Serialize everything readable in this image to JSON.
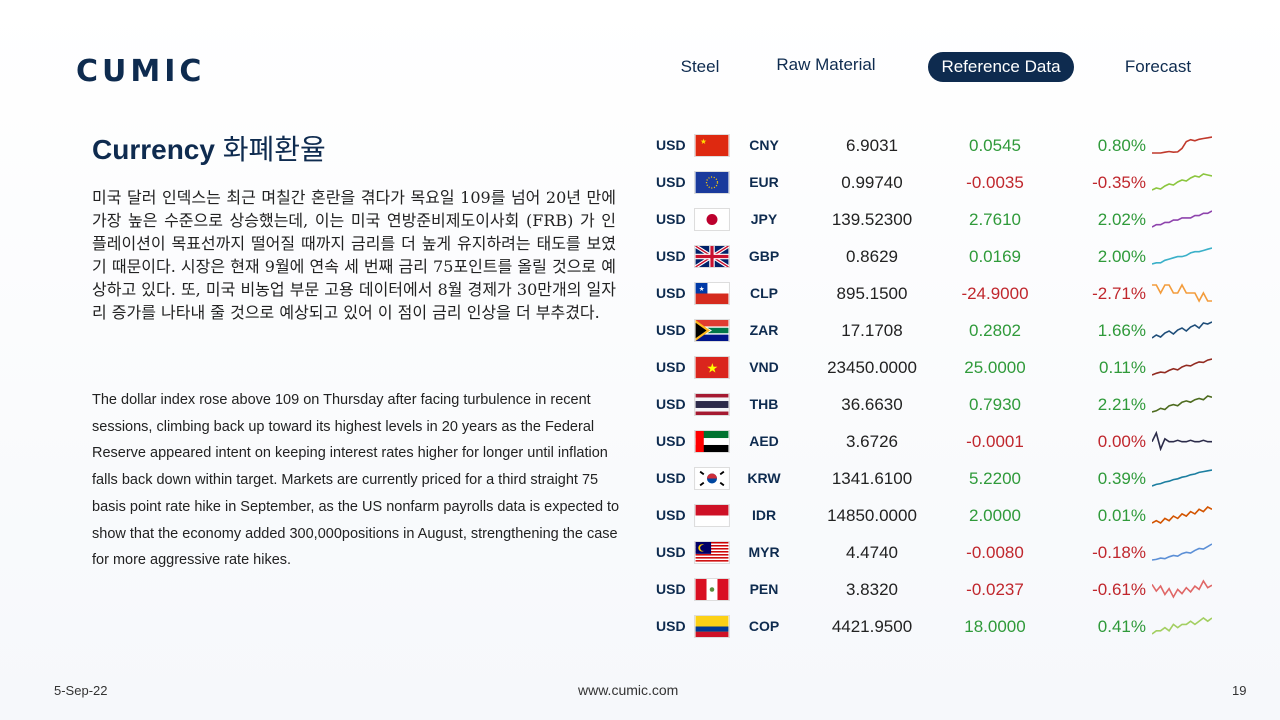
{
  "brand": "CUMIC",
  "nav": [
    {
      "label": "Steel"
    },
    {
      "label": "Raw Material"
    },
    {
      "label": "Reference Data",
      "active": true
    },
    {
      "label": "Forecast"
    }
  ],
  "title": {
    "en": "Currency",
    "ko": "화폐환율"
  },
  "korean_text": "미국 달러 인덱스는 최근 며칠간 혼란을 겪다가 목요일 109를 넘어 20년 만에 가장 높은 수준으로 상승했는데, 이는 미국 연방준비제도이사회 (FRB) 가 인플레이션이 목표선까지 떨어질 때까지 금리를 더 높게 유지하려는 태도를 보였기 때문이다. 시장은 현재 9월에 연속 세 번째 금리 75포인트를 올릴 것으로 예상하고 있다. 또, 미국 비농업 부문 고용 데이터에서 8월 경제가 30만개의 일자리 증가를 나타내 줄 것으로 예상되고 있어 이 점이 금리 인상을 더 부추겼다.",
  "english_text": "The dollar index rose above 109 on Thursday after facing turbulence in recent sessions, climbing back up toward its highest levels in 20 years as the Federal Reserve appeared intent on keeping interest rates higher for longer until inflation falls back down within target. Markets are currently priced for a third straight 75 basis point rate hike in September, as the US nonfarm payrolls data is expected to show that the economy added 300,000positions in August, strengthening the case for more aggressive rate hikes.",
  "currencies": [
    {
      "base": "USD",
      "quote": "CNY",
      "flag": "china-flag-icon",
      "rate": "6.9031",
      "change": "0.0545",
      "pct": "0.80%",
      "dir": "pos",
      "spark_color": "#c0392b",
      "spark": [
        2,
        2,
        2,
        2.2,
        2.4,
        2.2,
        2.3,
        3.2,
        5,
        5.5,
        5.2,
        5.6,
        5.8,
        6,
        6.2
      ]
    },
    {
      "base": "USD",
      "quote": "EUR",
      "flag": "eu-flag-icon",
      "rate": "0.99740",
      "change": "-0.0035",
      "pct": "-0.35%",
      "dir": "neg",
      "spark_color": "#8cc63f",
      "spark": [
        3,
        3.2,
        3.1,
        3.4,
        3.6,
        3.5,
        3.8,
        4,
        3.9,
        4.2,
        4.4,
        4.3,
        4.6,
        4.5,
        4.4
      ]
    },
    {
      "base": "USD",
      "quote": "JPY",
      "flag": "japan-flag-icon",
      "rate": "139.52300",
      "change": "2.7610",
      "pct": "2.02%",
      "dir": "pos",
      "spark_color": "#8e44ad",
      "spark": [
        4,
        4.1,
        4.1,
        4.2,
        4.2,
        4.3,
        4.3,
        4.4,
        4.4,
        4.4,
        4.5,
        4.5,
        4.6,
        4.6,
        4.7
      ]
    },
    {
      "base": "USD",
      "quote": "GBP",
      "flag": "uk-flag-icon",
      "rate": "0.8629",
      "change": "0.0169",
      "pct": "2.00%",
      "dir": "pos",
      "spark_color": "#3bb0c9",
      "spark": [
        3.5,
        3.6,
        3.6,
        3.8,
        3.9,
        4,
        4.1,
        4.1,
        4.2,
        4.4,
        4.5,
        4.5,
        4.6,
        4.7,
        4.8
      ]
    },
    {
      "base": "USD",
      "quote": "CLP",
      "flag": "chile-flag-icon",
      "rate": "895.1500",
      "change": "-24.9000",
      "pct": "-2.71%",
      "dir": "neg",
      "spark_color": "#f39c3c",
      "spark": [
        4.5,
        4.5,
        4.4,
        4.5,
        4.5,
        4.4,
        4.4,
        4.5,
        4.4,
        4.4,
        4.4,
        4.3,
        4.4,
        4.3,
        4.3
      ]
    },
    {
      "base": "USD",
      "quote": "ZAR",
      "flag": "south-africa-flag-icon",
      "rate": "17.1708",
      "change": "0.2802",
      "pct": "1.66%",
      "dir": "pos",
      "spark_color": "#1f4e79",
      "spark": [
        3.5,
        3.8,
        3.6,
        4,
        4.2,
        3.9,
        4.3,
        4.5,
        4.2,
        4.6,
        4.8,
        4.5,
        5,
        4.9,
        5.1
      ]
    },
    {
      "base": "USD",
      "quote": "VND",
      "flag": "vietnam-flag-icon",
      "rate": "23450.0000",
      "change": "25.0000",
      "pct": "0.11%",
      "dir": "pos",
      "spark_color": "#922b21",
      "spark": [
        2.5,
        2.8,
        3,
        2.9,
        3.3,
        3.6,
        3.4,
        3.9,
        4.2,
        4.1,
        4.5,
        4.8,
        4.7,
        5.1,
        5.3
      ]
    },
    {
      "base": "USD",
      "quote": "THB",
      "flag": "thailand-flag-icon",
      "rate": "36.6630",
      "change": "0.7930",
      "pct": "2.21%",
      "dir": "pos",
      "spark_color": "#4d6b1f",
      "spark": [
        3.5,
        3.6,
        3.8,
        3.7,
        4,
        4.1,
        4,
        4.3,
        4.4,
        4.3,
        4.5,
        4.6,
        4.5,
        4.8,
        4.7
      ]
    },
    {
      "base": "USD",
      "quote": "AED",
      "flag": "uae-flag-icon",
      "rate": "3.6726",
      "change": "-0.0001",
      "pct": "0.00%",
      "dir": "zero",
      "spark_color": "#2c2c4a",
      "spark": [
        4,
        4.6,
        3.5,
        4.2,
        4,
        4,
        4.1,
        4,
        4,
        4.1,
        4,
        4,
        4.1,
        4,
        4
      ]
    },
    {
      "base": "USD",
      "quote": "KRW",
      "flag": "korea-flag-icon",
      "rate": "1341.6100",
      "change": "5.2200",
      "pct": "0.39%",
      "dir": "pos",
      "spark_color": "#1c7ea0",
      "spark": [
        3,
        3.2,
        3.3,
        3.5,
        3.6,
        3.8,
        3.9,
        4.1,
        4.2,
        4.4,
        4.5,
        4.7,
        4.8,
        4.9,
        5
      ]
    },
    {
      "base": "USD",
      "quote": "IDR",
      "flag": "indonesia-flag-icon",
      "rate": "14850.0000",
      "change": "2.0000",
      "pct": "0.01%",
      "dir": "pos",
      "spark_color": "#d35400",
      "spark": [
        4,
        4.1,
        4,
        4.2,
        4.1,
        4.3,
        4.2,
        4.4,
        4.3,
        4.5,
        4.4,
        4.6,
        4.5,
        4.7,
        4.6
      ]
    },
    {
      "base": "USD",
      "quote": "MYR",
      "flag": "malaysia-flag-icon",
      "rate": "4.4740",
      "change": "-0.0080",
      "pct": "-0.18%",
      "dir": "neg",
      "spark_color": "#5b8fd6",
      "spark": [
        2.5,
        2.6,
        2.8,
        2.7,
        3,
        3.2,
        3.1,
        3.5,
        3.7,
        3.6,
        4,
        4.3,
        4.2,
        4.6,
        5
      ]
    },
    {
      "base": "USD",
      "quote": "PEN",
      "flag": "peru-flag-icon",
      "rate": "3.8320",
      "change": "-0.0237",
      "pct": "-0.61%",
      "dir": "neg",
      "spark_color": "#e06666",
      "spark": [
        5,
        4.2,
        4.8,
        3.8,
        4.5,
        3.5,
        4.4,
        3.9,
        4.6,
        4.1,
        4.8,
        4.4,
        5.4,
        4.6,
        4.9
      ]
    },
    {
      "base": "USD",
      "quote": "COP",
      "flag": "colombia-flag-icon",
      "rate": "4421.9500",
      "change": "18.0000",
      "pct": "0.41%",
      "dir": "pos",
      "spark_color": "#a3cf62",
      "spark": [
        4,
        4.1,
        4.1,
        4.2,
        4.1,
        4.3,
        4.2,
        4.3,
        4.3,
        4.4,
        4.3,
        4.4,
        4.5,
        4.4,
        4.5
      ]
    }
  ],
  "footer": {
    "date": "5-Sep-22",
    "url": "www.cumic.com",
    "page": "19"
  }
}
